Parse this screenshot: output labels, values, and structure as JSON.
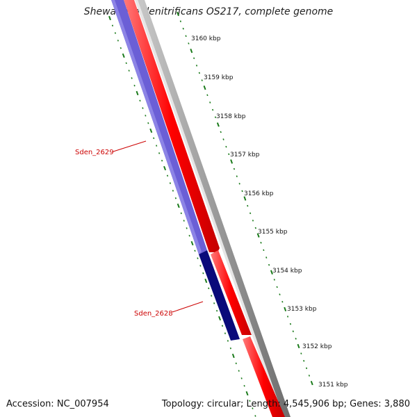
{
  "title": "Shewanella denitrificans OS217, complete genome",
  "footer": {
    "accession": "Accession: NC_007954",
    "summary": "Topology: circular; Length: 4,545,906 bp; Genes: 3,880"
  },
  "ticks": [
    "3160 kbp",
    "3159 kbp",
    "3158 kbp",
    "3157 kbp",
    "3156 kbp",
    "3155 kbp",
    "3154 kbp",
    "3153 kbp",
    "3152 kbp",
    "3151 kbp"
  ],
  "genes": [
    {
      "label": "Sden_2629",
      "strand": "reverse",
      "color": "#6b5fd6"
    },
    {
      "label": "Sden_2628",
      "strand": "reverse",
      "color": "#0a0a7a"
    }
  ],
  "colors": {
    "forward_cds": "#ff0000",
    "reverse_cds_light": "#6b5fd6",
    "reverse_cds_dark": "#0a0a7a",
    "backbone": "#8c8c8c",
    "tick": "#1a7a1a",
    "gene_label": "#cc0000"
  }
}
